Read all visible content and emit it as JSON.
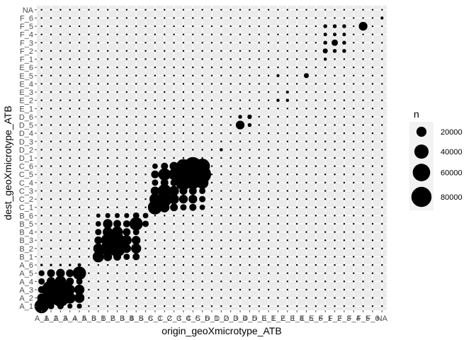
{
  "chart_data": {
    "type": "scatter",
    "subtype": "bubble-matrix",
    "title": "",
    "xlabel": "origin_geoXmicrotype_ATB",
    "ylabel": "dest_geoXmicrotype_ATB",
    "categories": [
      "A_1",
      "A_2",
      "A_3",
      "A_4",
      "A_5",
      "A_6",
      "B_1",
      "B_2",
      "B_3",
      "B_4",
      "B_5",
      "B_6",
      "C_1",
      "C_2",
      "C_3",
      "C_4",
      "C_5",
      "C_6",
      "D_1",
      "D_2",
      "D_3",
      "D_4",
      "D_5",
      "D_6",
      "E_1",
      "E_2",
      "E_3",
      "E_4",
      "E_5",
      "E_6",
      "F_1",
      "F_2",
      "F_3",
      "F_4",
      "F_5",
      "F_6",
      "NA"
    ],
    "size_legend": {
      "title": "n",
      "values": [
        20000,
        40000,
        60000,
        80000
      ],
      "labels": [
        "20000",
        "40000",
        "60000",
        "80000"
      ],
      "max_n": 95000
    },
    "background_n": 600,
    "points": [
      {
        "x": "A_1",
        "y": "A_1",
        "n": 40000
      },
      {
        "x": "A_2",
        "y": "A_1",
        "n": 8000
      },
      {
        "x": "A_3",
        "y": "A_1",
        "n": 8000
      },
      {
        "x": "A_4",
        "y": "A_1",
        "n": 5000
      },
      {
        "x": "A_5",
        "y": "A_1",
        "n": 5000
      },
      {
        "x": "A_1",
        "y": "A_2",
        "n": 15000
      },
      {
        "x": "A_2",
        "y": "A_2",
        "n": 45000
      },
      {
        "x": "A_3",
        "y": "A_2",
        "n": 60000
      },
      {
        "x": "A_4",
        "y": "A_2",
        "n": 25000
      },
      {
        "x": "A_5",
        "y": "A_2",
        "n": 20000
      },
      {
        "x": "A_1",
        "y": "A_3",
        "n": 10000
      },
      {
        "x": "A_2",
        "y": "A_3",
        "n": 65000
      },
      {
        "x": "A_3",
        "y": "A_3",
        "n": 70000
      },
      {
        "x": "A_4",
        "y": "A_3",
        "n": 20000
      },
      {
        "x": "A_5",
        "y": "A_3",
        "n": 20000
      },
      {
        "x": "A_1",
        "y": "A_4",
        "n": 8000
      },
      {
        "x": "A_2",
        "y": "A_4",
        "n": 15000
      },
      {
        "x": "A_3",
        "y": "A_4",
        "n": 25000
      },
      {
        "x": "A_4",
        "y": "A_4",
        "n": 12000
      },
      {
        "x": "A_5",
        "y": "A_4",
        "n": 8000
      },
      {
        "x": "A_1",
        "y": "A_5",
        "n": 7000
      },
      {
        "x": "A_2",
        "y": "A_5",
        "n": 12000
      },
      {
        "x": "A_3",
        "y": "A_5",
        "n": 15000
      },
      {
        "x": "A_4",
        "y": "A_5",
        "n": 12000
      },
      {
        "x": "A_5",
        "y": "A_5",
        "n": 35000
      },
      {
        "x": "A_1",
        "y": "A_6",
        "n": 1200
      },
      {
        "x": "A_2",
        "y": "A_6",
        "n": 1200
      },
      {
        "x": "A_3",
        "y": "A_6",
        "n": 1200
      },
      {
        "x": "A_4",
        "y": "A_6",
        "n": 1200
      },
      {
        "x": "A_5",
        "y": "A_6",
        "n": 2500
      },
      {
        "x": "B_1",
        "y": "B_1",
        "n": 25000
      },
      {
        "x": "B_2",
        "y": "B_1",
        "n": 15000
      },
      {
        "x": "B_3",
        "y": "B_1",
        "n": 12000
      },
      {
        "x": "B_4",
        "y": "B_1",
        "n": 8000
      },
      {
        "x": "B_5",
        "y": "B_1",
        "n": 10000
      },
      {
        "x": "B_1",
        "y": "B_2",
        "n": 20000
      },
      {
        "x": "B_2",
        "y": "B_2",
        "n": 40000
      },
      {
        "x": "B_3",
        "y": "B_2",
        "n": 55000
      },
      {
        "x": "B_4",
        "y": "B_2",
        "n": 15000
      },
      {
        "x": "B_5",
        "y": "B_2",
        "n": 20000
      },
      {
        "x": "B_1",
        "y": "B_3",
        "n": 12000
      },
      {
        "x": "B_2",
        "y": "B_3",
        "n": 35000
      },
      {
        "x": "B_3",
        "y": "B_3",
        "n": 45000
      },
      {
        "x": "B_4",
        "y": "B_3",
        "n": 20000
      },
      {
        "x": "B_5",
        "y": "B_3",
        "n": 15000
      },
      {
        "x": "B_1",
        "y": "B_4",
        "n": 8000
      },
      {
        "x": "B_2",
        "y": "B_4",
        "n": 20000
      },
      {
        "x": "B_3",
        "y": "B_4",
        "n": 25000
      },
      {
        "x": "B_4",
        "y": "B_4",
        "n": 12000
      },
      {
        "x": "B_5",
        "y": "B_4",
        "n": 8000
      },
      {
        "x": "B_1",
        "y": "B_5",
        "n": 6000
      },
      {
        "x": "B_2",
        "y": "B_5",
        "n": 18000
      },
      {
        "x": "B_3",
        "y": "B_5",
        "n": 12000
      },
      {
        "x": "B_4",
        "y": "B_5",
        "n": 10000
      },
      {
        "x": "B_5",
        "y": "B_5",
        "n": 35000
      },
      {
        "x": "B_6",
        "y": "B_5",
        "n": 8000
      },
      {
        "x": "B_1",
        "y": "B_6",
        "n": 3500
      },
      {
        "x": "B_2",
        "y": "B_6",
        "n": 5000
      },
      {
        "x": "B_3",
        "y": "B_6",
        "n": 5000
      },
      {
        "x": "B_4",
        "y": "B_6",
        "n": 5000
      },
      {
        "x": "B_5",
        "y": "B_6",
        "n": 8000
      },
      {
        "x": "B_6",
        "y": "B_6",
        "n": 6000
      },
      {
        "x": "C_1",
        "y": "C_1",
        "n": 40000
      },
      {
        "x": "C_2",
        "y": "C_1",
        "n": 20000
      },
      {
        "x": "C_3",
        "y": "C_1",
        "n": 12000
      },
      {
        "x": "C_4",
        "y": "C_1",
        "n": 8000
      },
      {
        "x": "C_5",
        "y": "C_1",
        "n": 10000
      },
      {
        "x": "C_6",
        "y": "C_1",
        "n": 6000
      },
      {
        "x": "C_1",
        "y": "C_2",
        "n": 25000
      },
      {
        "x": "C_2",
        "y": "C_2",
        "n": 45000
      },
      {
        "x": "C_3",
        "y": "C_2",
        "n": 20000
      },
      {
        "x": "C_4",
        "y": "C_2",
        "n": 15000
      },
      {
        "x": "C_5",
        "y": "C_2",
        "n": 15000
      },
      {
        "x": "C_6",
        "y": "C_2",
        "n": 8000
      },
      {
        "x": "C_1",
        "y": "C_3",
        "n": 15000
      },
      {
        "x": "C_2",
        "y": "C_3",
        "n": 35000
      },
      {
        "x": "C_3",
        "y": "C_3",
        "n": 20000
      },
      {
        "x": "C_4",
        "y": "C_3",
        "n": 12000
      },
      {
        "x": "C_5",
        "y": "C_3",
        "n": 12000
      },
      {
        "x": "C_6",
        "y": "C_3",
        "n": 8000
      },
      {
        "x": "C_1",
        "y": "C_4",
        "n": 8000
      },
      {
        "x": "C_2",
        "y": "C_4",
        "n": 12000
      },
      {
        "x": "C_3",
        "y": "C_4",
        "n": 10000
      },
      {
        "x": "C_4",
        "y": "C_4",
        "n": 45000
      },
      {
        "x": "C_5",
        "y": "C_4",
        "n": 35000
      },
      {
        "x": "C_6",
        "y": "C_4",
        "n": 30000
      },
      {
        "x": "C_1",
        "y": "C_5",
        "n": 12000
      },
      {
        "x": "C_2",
        "y": "C_5",
        "n": 30000
      },
      {
        "x": "C_3",
        "y": "C_5",
        "n": 25000
      },
      {
        "x": "C_4",
        "y": "C_5",
        "n": 70000
      },
      {
        "x": "C_5",
        "y": "C_5",
        "n": 95000
      },
      {
        "x": "C_6",
        "y": "C_5",
        "n": 60000
      },
      {
        "x": "C_1",
        "y": "C_6",
        "n": 6000
      },
      {
        "x": "C_2",
        "y": "C_6",
        "n": 10000
      },
      {
        "x": "C_3",
        "y": "C_6",
        "n": 15000
      },
      {
        "x": "C_4",
        "y": "C_6",
        "n": 40000
      },
      {
        "x": "C_5",
        "y": "C_6",
        "n": 65000
      },
      {
        "x": "C_6",
        "y": "C_6",
        "n": 45000
      },
      {
        "x": "D_2",
        "y": "D_2",
        "n": 2000
      },
      {
        "x": "D_4",
        "y": "D_5",
        "n": 15000
      },
      {
        "x": "D_5",
        "y": "D_5",
        "n": 3000
      },
      {
        "x": "D_4",
        "y": "D_6",
        "n": 3000
      },
      {
        "x": "D_5",
        "y": "D_6",
        "n": 4000
      },
      {
        "x": "E_2",
        "y": "E_2",
        "n": 2000
      },
      {
        "x": "E_3",
        "y": "E_2",
        "n": 2000
      },
      {
        "x": "E_3",
        "y": "E_3",
        "n": 1800
      },
      {
        "x": "E_2",
        "y": "E_5",
        "n": 1800
      },
      {
        "x": "E_5",
        "y": "E_5",
        "n": 5000
      },
      {
        "x": "F_1",
        "y": "F_1",
        "n": 2000
      },
      {
        "x": "F_1",
        "y": "F_2",
        "n": 5000
      },
      {
        "x": "F_2",
        "y": "F_2",
        "n": 3000
      },
      {
        "x": "F_3",
        "y": "F_2",
        "n": 3000
      },
      {
        "x": "F_1",
        "y": "F_3",
        "n": 3000
      },
      {
        "x": "F_2",
        "y": "F_3",
        "n": 8000
      },
      {
        "x": "F_3",
        "y": "F_3",
        "n": 3000
      },
      {
        "x": "F_1",
        "y": "F_4",
        "n": 2500
      },
      {
        "x": "F_2",
        "y": "F_4",
        "n": 2500
      },
      {
        "x": "F_3",
        "y": "F_4",
        "n": 2500
      },
      {
        "x": "F_1",
        "y": "F_5",
        "n": 3000
      },
      {
        "x": "F_2",
        "y": "F_5",
        "n": 3000
      },
      {
        "x": "F_3",
        "y": "F_5",
        "n": 3000
      },
      {
        "x": "F_5",
        "y": "F_5",
        "n": 15000
      },
      {
        "x": "NA",
        "y": "F_6",
        "n": 1800
      }
    ],
    "colors": {
      "panel": "#ebebeb",
      "grid": "#ffffff",
      "point": "#000000",
      "tick": "#4d4d4d",
      "legend_key": "#f2f2f2"
    },
    "grid": true,
    "legend_position": "right"
  }
}
